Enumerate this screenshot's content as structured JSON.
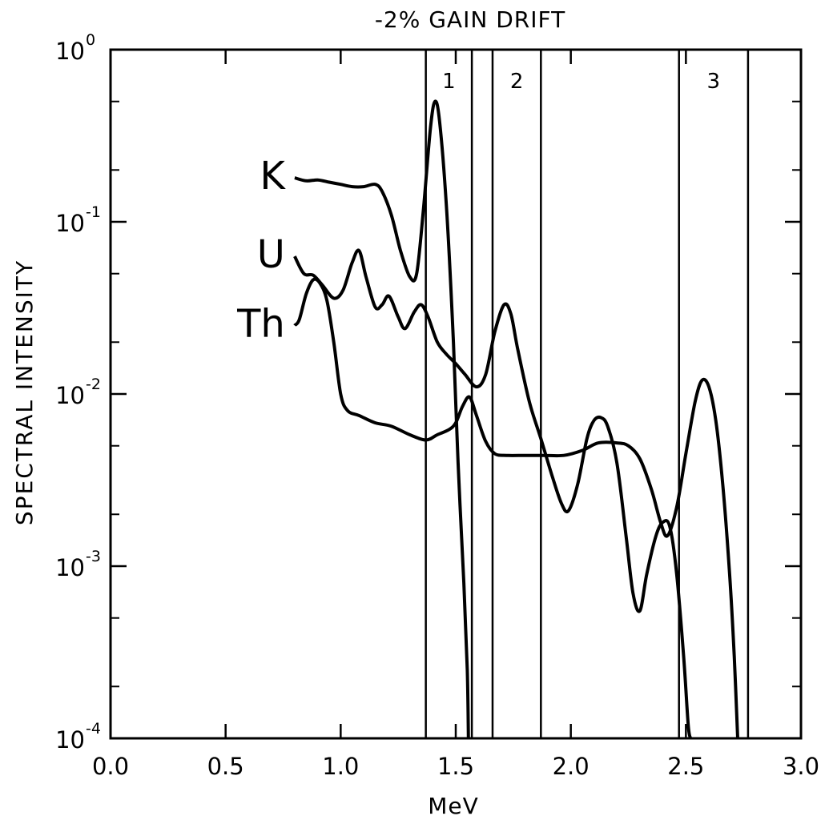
{
  "chart_data": {
    "type": "line",
    "title": "-2% GAIN DRIFT",
    "xlabel": "MeV",
    "ylabel": "SPECTRAL INTENSITY",
    "xlim": [
      0.0,
      3.0
    ],
    "ylim_log10": [
      -4,
      0
    ],
    "y_scale": "log",
    "grid": false,
    "x_ticks": [
      "0.0",
      "0.5",
      "1.0",
      "1.5",
      "2.0",
      "2.5",
      "3.0"
    ],
    "y_ticks": [
      {
        "base": "10",
        "exp": "-4"
      },
      {
        "base": "10",
        "exp": "-3"
      },
      {
        "base": "10",
        "exp": "-2"
      },
      {
        "base": "10",
        "exp": "-1"
      },
      {
        "base": "10",
        "exp": "0"
      }
    ],
    "windows": [
      {
        "label": "1",
        "from": 1.37,
        "to": 1.57
      },
      {
        "label": "2",
        "from": 1.66,
        "to": 1.87
      },
      {
        "label": "3",
        "from": 2.47,
        "to": 2.77
      }
    ],
    "series": [
      {
        "name": "K",
        "points": [
          [
            0.8,
            0.18
          ],
          [
            0.85,
            0.173
          ],
          [
            0.9,
            0.175
          ],
          [
            0.95,
            0.17
          ],
          [
            1.0,
            0.165
          ],
          [
            1.05,
            0.16
          ],
          [
            1.1,
            0.16
          ],
          [
            1.15,
            0.165
          ],
          [
            1.18,
            0.15
          ],
          [
            1.22,
            0.11
          ],
          [
            1.26,
            0.068
          ],
          [
            1.3,
            0.048
          ],
          [
            1.33,
            0.05
          ],
          [
            1.36,
            0.12
          ],
          [
            1.39,
            0.35
          ],
          [
            1.41,
            0.5
          ],
          [
            1.43,
            0.38
          ],
          [
            1.46,
            0.12
          ],
          [
            1.49,
            0.02
          ],
          [
            1.51,
            0.004
          ],
          [
            1.535,
            0.0008
          ],
          [
            1.55,
            0.00025
          ],
          [
            1.555,
            0.0001
          ]
        ]
      },
      {
        "name": "U",
        "points": [
          [
            0.8,
            0.063
          ],
          [
            0.84,
            0.05
          ],
          [
            0.88,
            0.049
          ],
          [
            0.92,
            0.043
          ],
          [
            0.97,
            0.036
          ],
          [
            1.01,
            0.04
          ],
          [
            1.05,
            0.058
          ],
          [
            1.08,
            0.068
          ],
          [
            1.11,
            0.048
          ],
          [
            1.15,
            0.032
          ],
          [
            1.18,
            0.033
          ],
          [
            1.21,
            0.037
          ],
          [
            1.25,
            0.028
          ],
          [
            1.28,
            0.024
          ],
          [
            1.32,
            0.03
          ],
          [
            1.35,
            0.033
          ],
          [
            1.38,
            0.028
          ],
          [
            1.42,
            0.02
          ],
          [
            1.46,
            0.017
          ],
          [
            1.5,
            0.015
          ],
          [
            1.54,
            0.013
          ],
          [
            1.59,
            0.011
          ],
          [
            1.63,
            0.013
          ],
          [
            1.67,
            0.023
          ],
          [
            1.71,
            0.033
          ],
          [
            1.74,
            0.029
          ],
          [
            1.77,
            0.018
          ],
          [
            1.82,
            0.009
          ],
          [
            1.87,
            0.0055
          ],
          [
            1.92,
            0.0033
          ],
          [
            1.96,
            0.0023
          ],
          [
            1.99,
            0.0021
          ],
          [
            2.03,
            0.003
          ],
          [
            2.07,
            0.0055
          ],
          [
            2.1,
            0.007
          ],
          [
            2.13,
            0.0073
          ],
          [
            2.16,
            0.0065
          ],
          [
            2.2,
            0.004
          ],
          [
            2.24,
            0.0015
          ],
          [
            2.27,
            0.0007
          ],
          [
            2.3,
            0.00055
          ],
          [
            2.33,
            0.0009
          ],
          [
            2.37,
            0.0015
          ],
          [
            2.4,
            0.0018
          ],
          [
            2.43,
            0.0017
          ],
          [
            2.46,
            0.0009
          ],
          [
            2.49,
            0.0003
          ],
          [
            2.51,
            0.00012
          ],
          [
            2.52,
            0.0001
          ]
        ]
      },
      {
        "name": "Th",
        "points": [
          [
            0.8,
            0.025
          ],
          [
            0.82,
            0.027
          ],
          [
            0.85,
            0.038
          ],
          [
            0.88,
            0.046
          ],
          [
            0.91,
            0.044
          ],
          [
            0.94,
            0.035
          ],
          [
            0.97,
            0.02
          ],
          [
            1.0,
            0.01
          ],
          [
            1.03,
            0.008
          ],
          [
            1.08,
            0.0075
          ],
          [
            1.15,
            0.0068
          ],
          [
            1.22,
            0.0065
          ],
          [
            1.3,
            0.0058
          ],
          [
            1.37,
            0.0054
          ],
          [
            1.42,
            0.0058
          ],
          [
            1.47,
            0.0062
          ],
          [
            1.5,
            0.0068
          ],
          [
            1.53,
            0.0085
          ],
          [
            1.56,
            0.0096
          ],
          [
            1.59,
            0.0075
          ],
          [
            1.63,
            0.0053
          ],
          [
            1.67,
            0.0045
          ],
          [
            1.72,
            0.0044
          ],
          [
            1.8,
            0.0044
          ],
          [
            1.88,
            0.0044
          ],
          [
            1.97,
            0.0044
          ],
          [
            2.05,
            0.0047
          ],
          [
            2.12,
            0.0052
          ],
          [
            2.2,
            0.0052
          ],
          [
            2.25,
            0.005
          ],
          [
            2.3,
            0.0042
          ],
          [
            2.35,
            0.0028
          ],
          [
            2.39,
            0.0018
          ],
          [
            2.42,
            0.0015
          ],
          [
            2.46,
            0.0022
          ],
          [
            2.5,
            0.0045
          ],
          [
            2.54,
            0.009
          ],
          [
            2.57,
            0.012
          ],
          [
            2.6,
            0.011
          ],
          [
            2.63,
            0.007
          ],
          [
            2.66,
            0.003
          ],
          [
            2.69,
            0.0009
          ],
          [
            2.71,
            0.0003
          ],
          [
            2.725,
            0.0001
          ]
        ]
      }
    ]
  }
}
